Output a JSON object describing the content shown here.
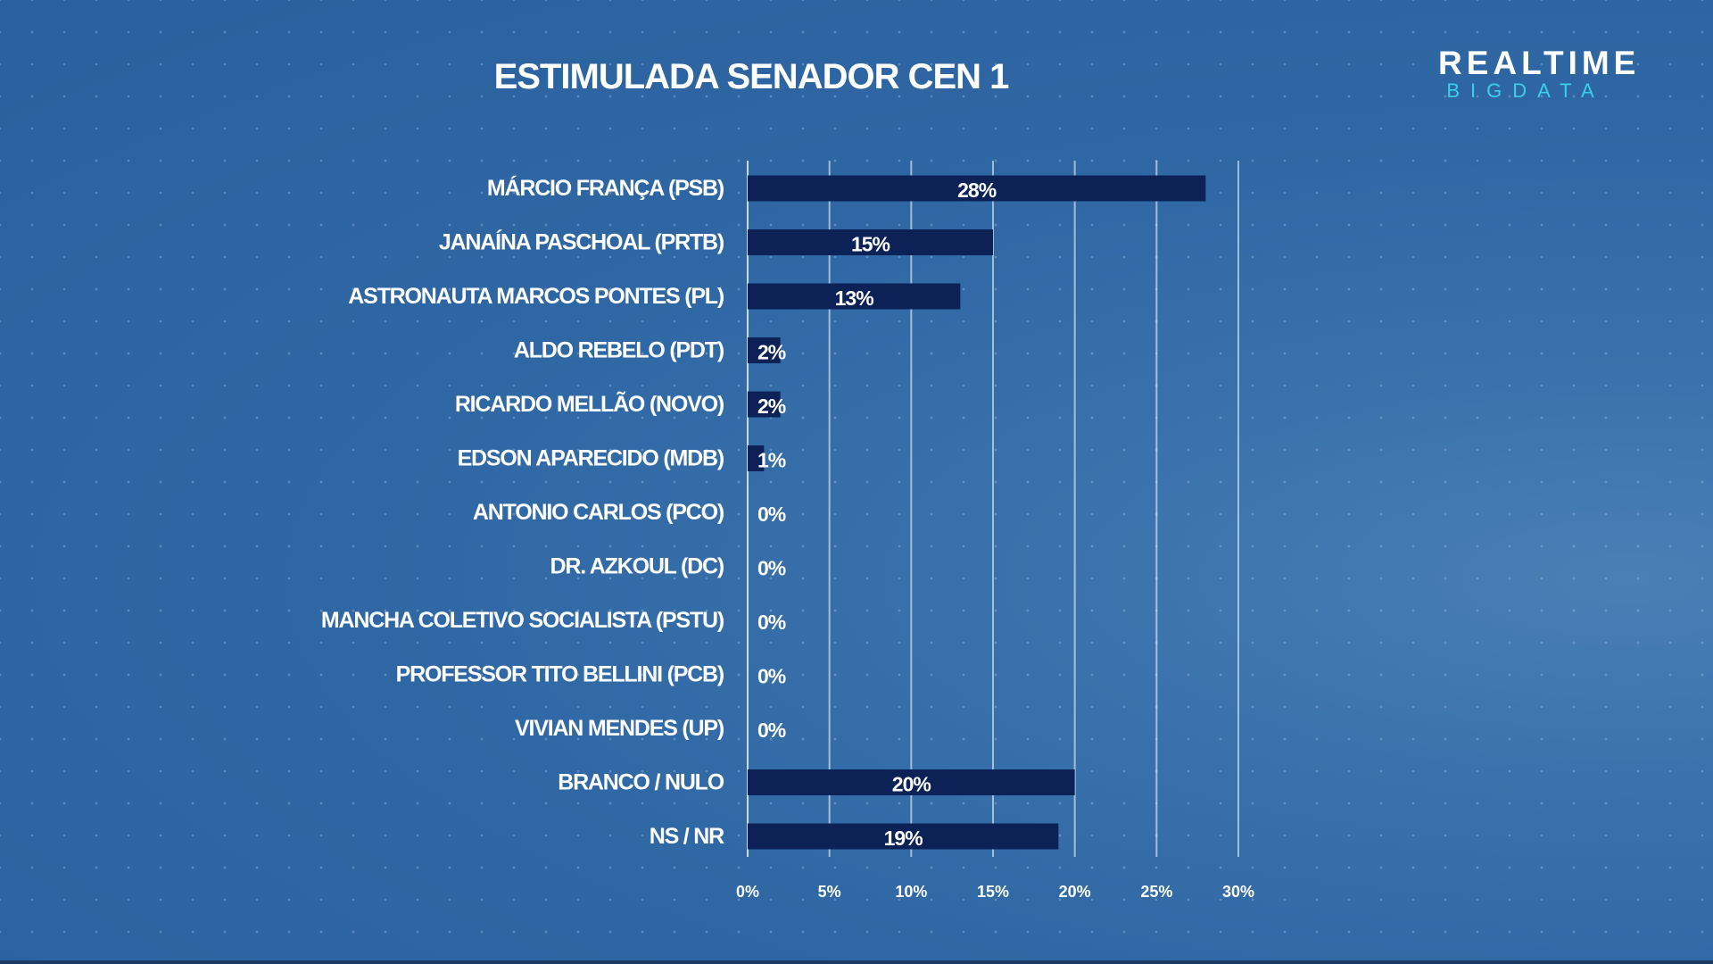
{
  "header": {
    "title": "ESTIMULADA SENADOR CEN 1",
    "logo_top": "REALTIME",
    "logo_bottom": "BIGDATA"
  },
  "colors": {
    "bar": "#0c2256",
    "accent": "#3ad0e8"
  },
  "chart_data": {
    "type": "bar",
    "orientation": "horizontal",
    "title": "ESTIMULADA SENADOR CEN 1",
    "categories": [
      "MÁRCIO FRANÇA (PSB)",
      "JANAÍNA PASCHOAL (PRTB)",
      "ASTRONAUTA MARCOS PONTES (PL)",
      "ALDO REBELO (PDT)",
      "RICARDO MELLÃO (NOVO)",
      "EDSON APARECIDO (MDB)",
      "ANTONIO CARLOS (PCO)",
      "DR. AZKOUL (DC)",
      "MANCHA COLETIVO SOCIALISTA (PSTU)",
      "PROFESSOR TITO BELLINI (PCB)",
      "VIVIAN MENDES (UP)",
      "BRANCO / NULO",
      "NS / NR"
    ],
    "values": [
      28,
      15,
      13,
      2,
      2,
      1,
      0,
      0,
      0,
      0,
      0,
      20,
      19
    ],
    "value_labels": [
      "28%",
      "15%",
      "13%",
      "2%",
      "2%",
      "1%",
      "0%",
      "0%",
      "0%",
      "0%",
      "0%",
      "20%",
      "19%"
    ],
    "xlim": [
      0,
      30
    ],
    "xticks": [
      0,
      5,
      10,
      15,
      20,
      25,
      30
    ],
    "xtick_labels": [
      "0%",
      "5%",
      "10%",
      "15%",
      "20%",
      "25%",
      "30%"
    ],
    "xlabel": "",
    "ylabel": "",
    "grid": "vertical",
    "legend": "none"
  }
}
